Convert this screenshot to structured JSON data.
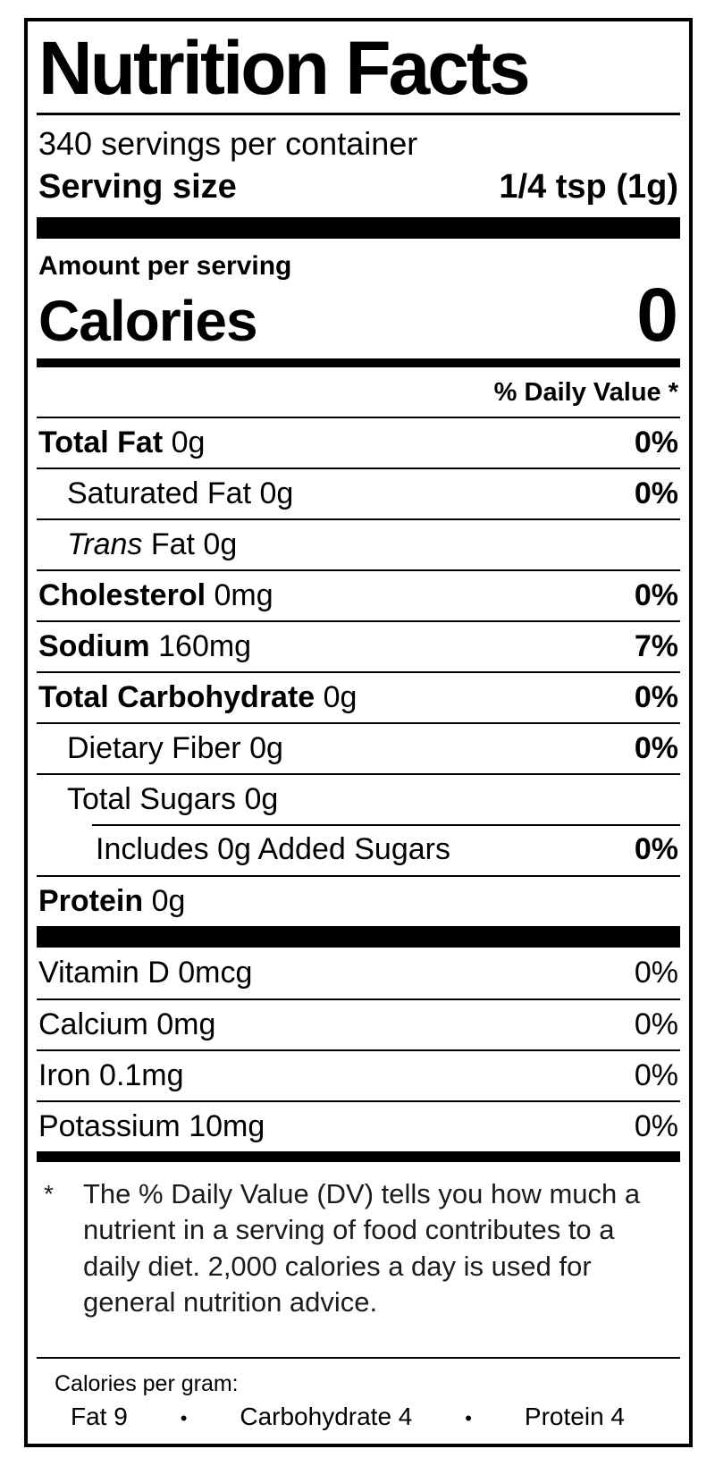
{
  "label": {
    "title": "Nutrition Facts",
    "servings_per_container": "340 servings per container",
    "serving_size_label": "Serving size",
    "serving_size_value": "1/4 tsp (1g)",
    "amount_per_serving": "Amount per serving",
    "calories_label": "Calories",
    "calories_value": "0",
    "daily_value_header": "% Daily Value *",
    "nutrients": [
      {
        "name": "Total Fat",
        "amount": "0g",
        "dv": "0%"
      },
      {
        "name": "Saturated Fat",
        "amount": "0g",
        "dv": "0%"
      },
      {
        "name": "Trans",
        "amount": "Fat 0g",
        "dv": ""
      },
      {
        "name": "Cholesterol",
        "amount": "0mg",
        "dv": "0%"
      },
      {
        "name": "Sodium",
        "amount": "160mg",
        "dv": "7%"
      },
      {
        "name": "Total Carbohydrate",
        "amount": "0g",
        "dv": "0%"
      },
      {
        "name": "Dietary Fiber",
        "amount": "0g",
        "dv": "0%"
      },
      {
        "name": "Total Sugars",
        "amount": "0g",
        "dv": ""
      },
      {
        "name": "Includes 0g Added Sugars",
        "amount": "",
        "dv": "0%"
      },
      {
        "name": "Protein",
        "amount": "0g",
        "dv": ""
      }
    ],
    "vitamins": [
      {
        "name": "Vitamin D",
        "amount": "0mcg",
        "dv": "0%"
      },
      {
        "name": "Calcium",
        "amount": "0mg",
        "dv": "0%"
      },
      {
        "name": "Iron",
        "amount": "0.1mg",
        "dv": "0%"
      },
      {
        "name": "Potassium",
        "amount": "10mg",
        "dv": "0%"
      }
    ],
    "footnote_marker": "*",
    "footnote": "The % Daily Value (DV) tells you how much a nutrient in a serving of food contributes to a daily diet. 2,000 calories a day is used for general nutrition advice.",
    "calories_per_gram": {
      "heading": "Calories per gram:",
      "bullet": "•",
      "items": [
        "Fat 9",
        "Carbohydrate 4",
        "Protein 4"
      ]
    }
  }
}
